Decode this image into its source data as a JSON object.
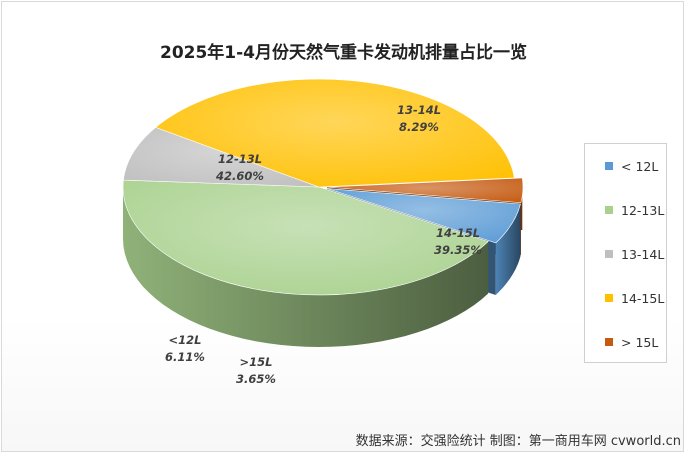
{
  "chart_data": {
    "type": "pie",
    "title": "2025年1-4月份天然气重卡发动机排量占比一览",
    "legend_position": "right",
    "slices": [
      {
        "name": "< 12L",
        "label": "<12L",
        "value": 6.11,
        "value_label": "6.11%",
        "color": "#5b9bd5"
      },
      {
        "name": "12-13L",
        "label": "12-13L",
        "value": 42.6,
        "value_label": "42.60%",
        "color": "#a9d18e"
      },
      {
        "name": "13-14L",
        "label": "13-14L",
        "value": 8.29,
        "value_label": "8.29%",
        "color": "#bfbfbf"
      },
      {
        "name": "14-15L",
        "label": "14-15L",
        "value": 39.35,
        "value_label": "39.35%",
        "color": "#ffc000"
      },
      {
        "name": "> 15L",
        "label": ">15L",
        "value": 3.65,
        "value_label": "3.65%",
        "color": "#c55a11"
      }
    ]
  },
  "source_text": "数据来源：交强险统计  制图：第一商用车网 cvworld.cn"
}
